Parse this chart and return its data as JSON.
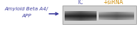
{
  "label_line1": "Amyloid Beta A4/",
  "label_line2": "APP",
  "label_color": "#3d3d9e",
  "arrow_color": "#3d3d9e",
  "tc_label": "TC",
  "sirna_label": "+siRNA",
  "tc_label_color": "#5555aa",
  "sirna_label_color": "#cc8800",
  "blot_bg": "#d0d0d0",
  "blot_border": "#999999",
  "band1_color": "#2a2a2a",
  "band2_color": "#686868",
  "fig_bg": "#ffffff"
}
